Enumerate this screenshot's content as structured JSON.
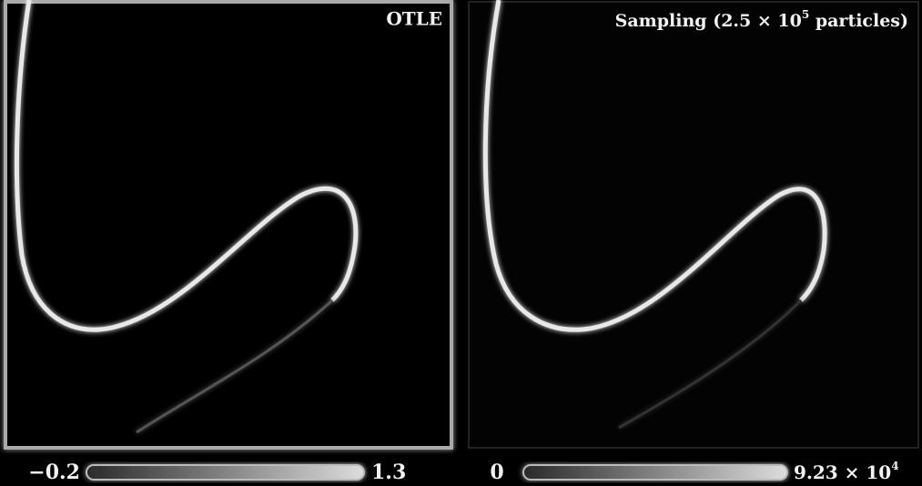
{
  "panels": [
    {
      "title": "OTLE",
      "colorbar": {
        "min_label": "−0.2",
        "max_label": "1.3"
      }
    },
    {
      "title": {
        "text": "Sampling (2.5 × 10",
        "exponent": "5",
        "suffix": " particles)"
      },
      "colorbar": {
        "min_label": "0",
        "max_label": {
          "text": "9.23 × 10",
          "exponent": "4"
        }
      }
    }
  ]
}
